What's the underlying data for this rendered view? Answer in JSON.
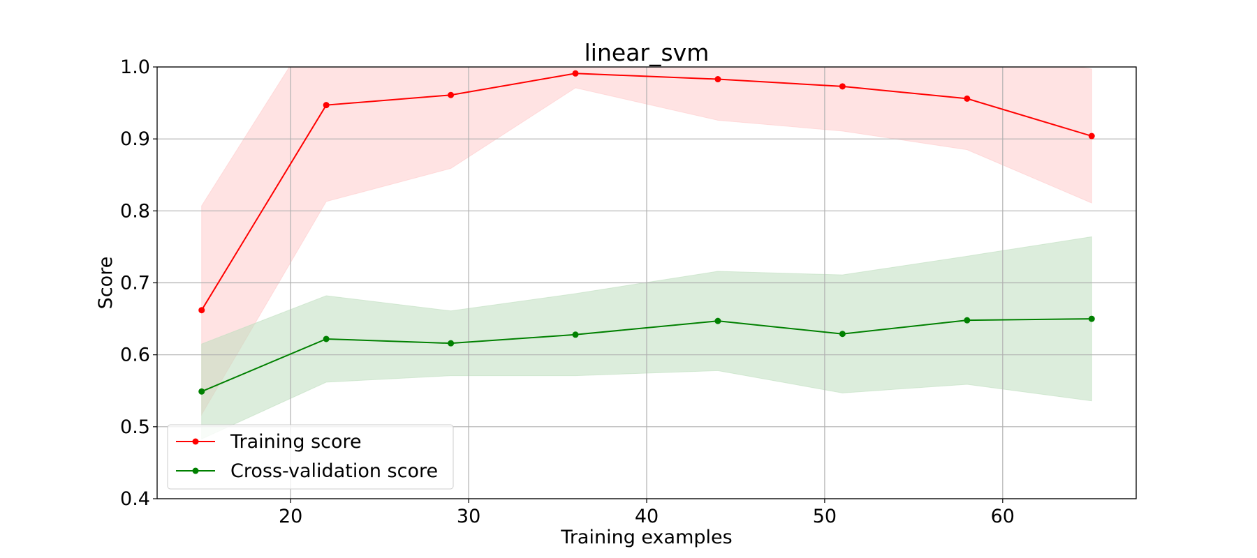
{
  "chart_data": {
    "type": "line",
    "title": "linear_svm",
    "xlabel": "Training examples",
    "ylabel": "Score",
    "xlim": [
      12.5,
      67.5
    ],
    "ylim": [
      0.4,
      1.0
    ],
    "x_ticks": [
      20,
      30,
      40,
      50,
      60
    ],
    "x_tick_labels": [
      "20",
      "30",
      "40",
      "50",
      "60"
    ],
    "y_ticks": [
      0.4,
      0.5,
      0.6,
      0.7,
      0.8,
      0.9,
      1.0
    ],
    "y_tick_labels": [
      "0.4",
      "0.5",
      "0.6",
      "0.7",
      "0.8",
      "0.9",
      "1.0"
    ],
    "grid": true,
    "legend_position": "lower-left",
    "x": [
      15,
      22,
      29,
      36,
      44,
      51,
      58,
      65
    ],
    "series": [
      {
        "name": "Training score",
        "color": "#ff0000",
        "band_color": "#ffcccc",
        "values": [
          0.662,
          0.947,
          0.961,
          0.991,
          0.983,
          0.973,
          0.956,
          0.904
        ],
        "band_upper": [
          0.807,
          1.081,
          1.063,
          1.011,
          1.04,
          1.035,
          1.027,
          0.997
        ],
        "band_lower": [
          0.517,
          0.813,
          0.859,
          0.971,
          0.926,
          0.911,
          0.885,
          0.811
        ]
      },
      {
        "name": "Cross-validation score",
        "color": "#008000",
        "band_color": "#bfdfbf",
        "values": [
          0.549,
          0.622,
          0.616,
          0.628,
          0.647,
          0.629,
          0.648,
          0.65
        ],
        "band_upper": [
          0.615,
          0.682,
          0.661,
          0.685,
          0.716,
          0.711,
          0.737,
          0.764
        ],
        "band_lower": [
          0.483,
          0.562,
          0.571,
          0.571,
          0.578,
          0.547,
          0.559,
          0.536
        ]
      }
    ]
  }
}
